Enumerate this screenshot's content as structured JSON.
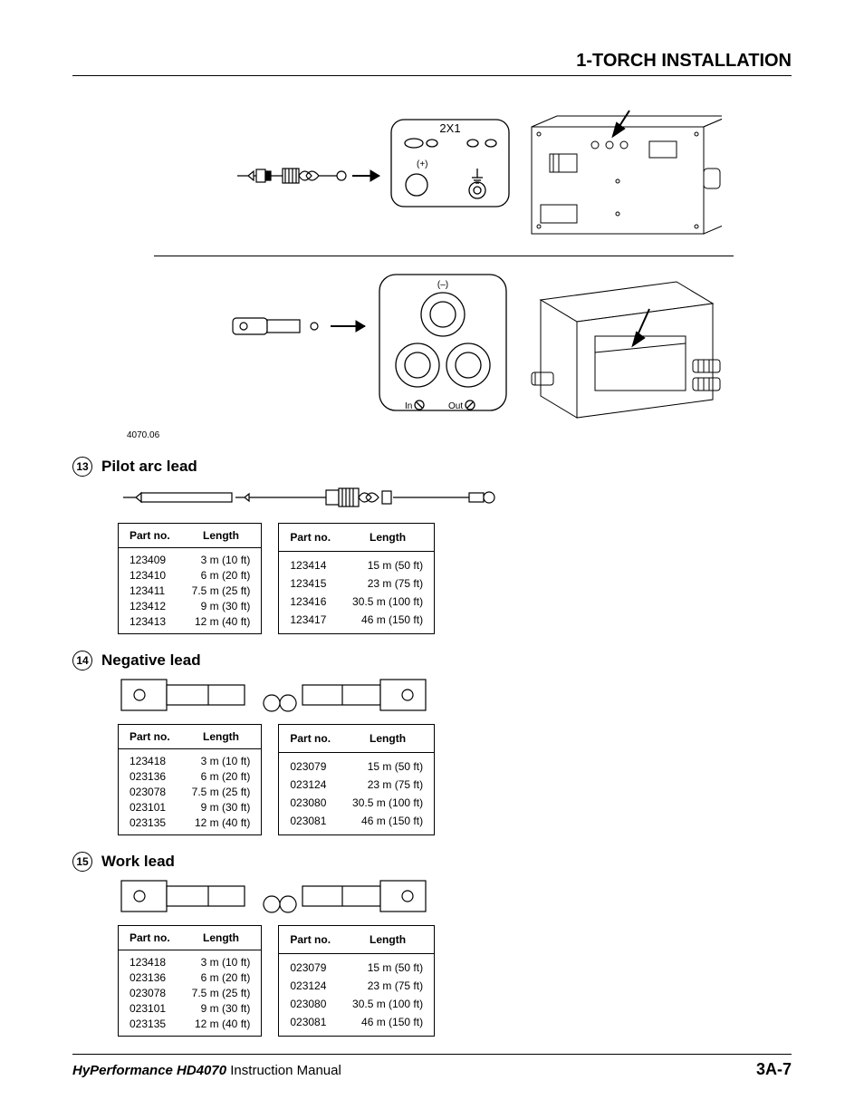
{
  "header": {
    "title": "1-TORCH INSTALLATION"
  },
  "topDiagram": {
    "panel_label": "2X1",
    "plus_label": "(+)",
    "minus_label": "(–)",
    "in_label": "In",
    "out_label": "Out",
    "fig_ref": "4070.06"
  },
  "sections": [
    {
      "num": "13",
      "title": "Pilot arc lead",
      "lead_svg_variant": "pilot",
      "headers": [
        "Part no.",
        "Length"
      ],
      "left": [
        {
          "pn": "123409",
          "len": "3 m (10 ft)"
        },
        {
          "pn": "123410",
          "len": "6 m (20 ft)"
        },
        {
          "pn": "123411",
          "len": "7.5 m (25 ft)"
        },
        {
          "pn": "123412",
          "len": "9 m (30 ft)"
        },
        {
          "pn": "123413",
          "len": "12 m (40 ft)"
        }
      ],
      "right": [
        {
          "pn": "123414",
          "len": "15 m (50 ft)"
        },
        {
          "pn": "123415",
          "len": "23 m (75 ft)"
        },
        {
          "pn": "123416",
          "len": "30.5 m (100 ft)"
        },
        {
          "pn": "123417",
          "len": "46 m (150 ft)"
        }
      ]
    },
    {
      "num": "14",
      "title": "Negative lead",
      "lead_svg_variant": "lug",
      "headers": [
        "Part no.",
        "Length"
      ],
      "left": [
        {
          "pn": "123418",
          "len": "3 m (10 ft)"
        },
        {
          "pn": "023136",
          "len": "6 m (20 ft)"
        },
        {
          "pn": "023078",
          "len": "7.5 m (25 ft)"
        },
        {
          "pn": "023101",
          "len": "9 m (30 ft)"
        },
        {
          "pn": "023135",
          "len": "12 m (40 ft)"
        }
      ],
      "right": [
        {
          "pn": "023079",
          "len": "15 m (50 ft)"
        },
        {
          "pn": "023124",
          "len": "23 m (75 ft)"
        },
        {
          "pn": "023080",
          "len": "30.5 m (100 ft)"
        },
        {
          "pn": "023081",
          "len": "46 m (150 ft)"
        }
      ]
    },
    {
      "num": "15",
      "title": "Work lead",
      "lead_svg_variant": "lug",
      "headers": [
        "Part no.",
        "Length"
      ],
      "left": [
        {
          "pn": "123418",
          "len": "3 m (10 ft)"
        },
        {
          "pn": "023136",
          "len": "6 m (20 ft)"
        },
        {
          "pn": "023078",
          "len": "7.5 m (25 ft)"
        },
        {
          "pn": "023101",
          "len": "9 m (30 ft)"
        },
        {
          "pn": "023135",
          "len": "12 m (40 ft)"
        }
      ],
      "right": [
        {
          "pn": "023079",
          "len": "15 m (50 ft)"
        },
        {
          "pn": "023124",
          "len": "23 m (75 ft)"
        },
        {
          "pn": "023080",
          "len": "30.5 m (100 ft)"
        },
        {
          "pn": "023081",
          "len": "46 m (150 ft)"
        }
      ]
    }
  ],
  "footer": {
    "product": "HyPerformance HD4070",
    "doc": "Instruction Manual",
    "page": "3A-7"
  },
  "style": {
    "text_color": "#000000",
    "bg_color": "#ffffff",
    "header_fontsize": 20,
    "section_title_fontsize": 17,
    "table_fontsize": 12,
    "circ_diameter": 22
  }
}
